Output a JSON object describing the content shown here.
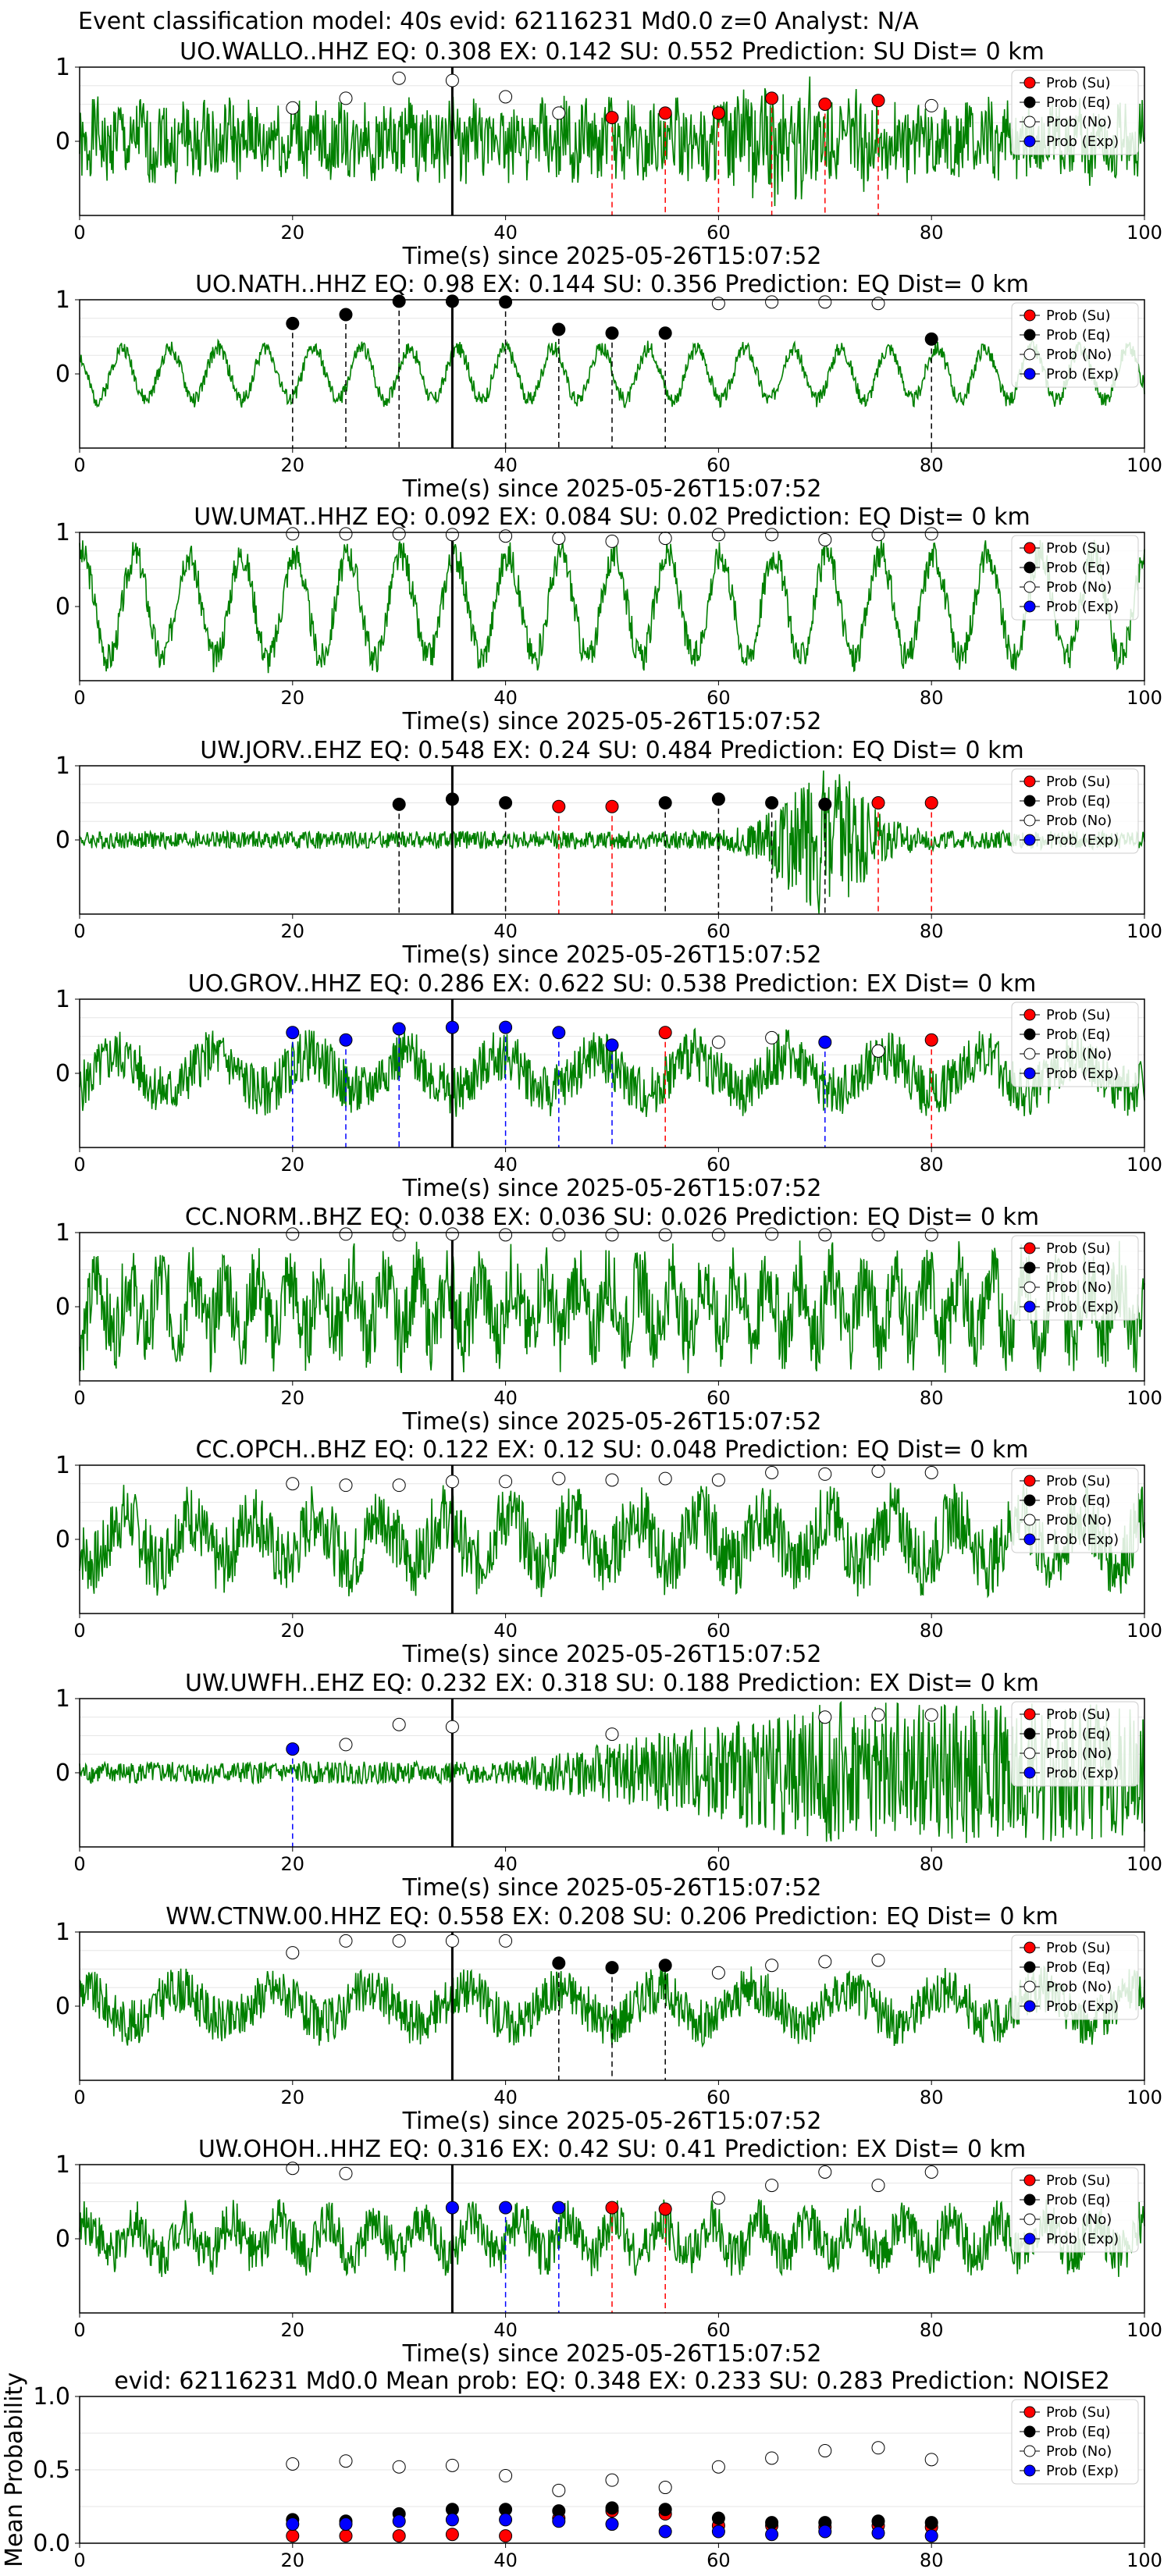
{
  "header": {
    "title": "Event classification model: 40s evid: 62116231 Md0.0 z=0 Analyst: N/A"
  },
  "legend": {
    "labels": [
      "Prob (Su)",
      "Prob (Eq)",
      "Prob (No)",
      "Prob (Exp)"
    ],
    "colors": [
      "#ff0000",
      "#000000",
      "#ffffff",
      "#0000ff"
    ]
  },
  "colors": {
    "trace": "#008000",
    "su": "#ff0000",
    "eq": "#000000",
    "no": "#ffffff",
    "ex": "#0000ff",
    "pick_line": "#000000",
    "grid": "#e6e6e6"
  },
  "chart_data": [
    {
      "type": "line",
      "title": "UO.WALLO..HHZ   EQ: 0.308   EX: 0.142   SU: 0.552   Prediction: SU    Dist= 0 km",
      "xlabel": "Time(s) since 2025-05-26T15:07:52",
      "xlim": [
        0,
        100
      ],
      "ylim": [
        -1,
        1
      ],
      "x_ticks": [
        "0",
        "20",
        "40",
        "60",
        "80",
        "100"
      ],
      "y_ticks": [
        "1",
        "0"
      ],
      "pick_time": 35,
      "trace": {
        "style": "emergent",
        "amplitude": 0.6,
        "period": 2,
        "seed": 1
      },
      "points": [
        {
          "x": 20,
          "y": 0.45,
          "cls": "no"
        },
        {
          "x": 25,
          "y": 0.58,
          "cls": "no"
        },
        {
          "x": 30,
          "y": 0.85,
          "cls": "no"
        },
        {
          "x": 35,
          "y": 0.82,
          "cls": "no"
        },
        {
          "x": 40,
          "y": 0.6,
          "cls": "no"
        },
        {
          "x": 45,
          "y": 0.38,
          "cls": "no"
        },
        {
          "x": 50,
          "y": 0.32,
          "cls": "su"
        },
        {
          "x": 55,
          "y": 0.38,
          "cls": "su"
        },
        {
          "x": 60,
          "y": 0.38,
          "cls": "su"
        },
        {
          "x": 65,
          "y": 0.58,
          "cls": "su"
        },
        {
          "x": 70,
          "y": 0.5,
          "cls": "su"
        },
        {
          "x": 75,
          "y": 0.55,
          "cls": "su"
        },
        {
          "x": 80,
          "y": 0.48,
          "cls": "no"
        }
      ]
    },
    {
      "type": "line",
      "title": "UO.NATH..HHZ   EQ: 0.98   EX: 0.144   SU: 0.356   Prediction: EQ    Dist= 0 km",
      "xlabel": "Time(s) since 2025-05-26T15:07:52",
      "xlim": [
        0,
        100
      ],
      "ylim": [
        -1,
        1
      ],
      "x_ticks": [
        "0",
        "20",
        "40",
        "60",
        "80",
        "100"
      ],
      "y_ticks": [
        "1",
        "0"
      ],
      "pick_time": 35,
      "trace": {
        "style": "oscillation",
        "amplitude": 0.35,
        "period": 4.5,
        "seed": 2
      },
      "points": [
        {
          "x": 20,
          "y": 0.68,
          "cls": "eq"
        },
        {
          "x": 25,
          "y": 0.8,
          "cls": "eq"
        },
        {
          "x": 30,
          "y": 0.98,
          "cls": "eq"
        },
        {
          "x": 35,
          "y": 0.98,
          "cls": "eq"
        },
        {
          "x": 40,
          "y": 0.97,
          "cls": "eq"
        },
        {
          "x": 45,
          "y": 0.6,
          "cls": "eq"
        },
        {
          "x": 50,
          "y": 0.55,
          "cls": "eq"
        },
        {
          "x": 55,
          "y": 0.55,
          "cls": "eq"
        },
        {
          "x": 60,
          "y": 0.95,
          "cls": "no"
        },
        {
          "x": 65,
          "y": 0.97,
          "cls": "no"
        },
        {
          "x": 70,
          "y": 0.97,
          "cls": "no"
        },
        {
          "x": 75,
          "y": 0.95,
          "cls": "no"
        },
        {
          "x": 80,
          "y": 0.47,
          "cls": "eq"
        }
      ]
    },
    {
      "type": "line",
      "title": "UW.UMAT..HHZ   EQ: 0.092   EX: 0.084   SU: 0.02   Prediction: EQ    Dist= 0 km",
      "xlabel": "Time(s) since 2025-05-26T15:07:52",
      "xlim": [
        0,
        100
      ],
      "ylim": [
        -1,
        1
      ],
      "x_ticks": [
        "0",
        "20",
        "40",
        "60",
        "80",
        "100"
      ],
      "y_ticks": [
        "1",
        "0"
      ],
      "pick_time": 35,
      "trace": {
        "style": "oscillation",
        "amplitude": 0.7,
        "period": 5,
        "seed": 3
      },
      "points": [
        {
          "x": 20,
          "y": 0.98,
          "cls": "no"
        },
        {
          "x": 25,
          "y": 0.98,
          "cls": "no"
        },
        {
          "x": 30,
          "y": 0.98,
          "cls": "no"
        },
        {
          "x": 35,
          "y": 0.97,
          "cls": "no"
        },
        {
          "x": 40,
          "y": 0.95,
          "cls": "no"
        },
        {
          "x": 45,
          "y": 0.92,
          "cls": "no"
        },
        {
          "x": 50,
          "y": 0.88,
          "cls": "no"
        },
        {
          "x": 55,
          "y": 0.92,
          "cls": "no"
        },
        {
          "x": 60,
          "y": 0.97,
          "cls": "no"
        },
        {
          "x": 65,
          "y": 0.97,
          "cls": "no"
        },
        {
          "x": 70,
          "y": 0.9,
          "cls": "no"
        },
        {
          "x": 75,
          "y": 0.97,
          "cls": "no"
        },
        {
          "x": 80,
          "y": 0.98,
          "cls": "no"
        }
      ]
    },
    {
      "type": "line",
      "title": "UW.JORV..EHZ   EQ: 0.548   EX: 0.24   SU: 0.484   Prediction: EQ    Dist= 0 km",
      "xlabel": "Time(s) since 2025-05-26T15:07:52",
      "xlim": [
        0,
        100
      ],
      "ylim": [
        -1,
        1
      ],
      "x_ticks": [
        "0",
        "20",
        "40",
        "60",
        "80",
        "100"
      ],
      "y_ticks": [
        "1",
        "0"
      ],
      "pick_time": 35,
      "trace": {
        "style": "quiet_burst",
        "amplitude": 0.12,
        "burst_center": 70,
        "burst_width": 5,
        "burst_amplitude": 0.9,
        "seed": 4
      },
      "points": [
        {
          "x": 30,
          "y": 0.48,
          "cls": "eq"
        },
        {
          "x": 35,
          "y": 0.55,
          "cls": "eq"
        },
        {
          "x": 40,
          "y": 0.5,
          "cls": "eq"
        },
        {
          "x": 45,
          "y": 0.45,
          "cls": "su"
        },
        {
          "x": 50,
          "y": 0.45,
          "cls": "su"
        },
        {
          "x": 55,
          "y": 0.5,
          "cls": "eq"
        },
        {
          "x": 60,
          "y": 0.55,
          "cls": "eq"
        },
        {
          "x": 65,
          "y": 0.5,
          "cls": "eq"
        },
        {
          "x": 70,
          "y": 0.48,
          "cls": "eq"
        },
        {
          "x": 75,
          "y": 0.5,
          "cls": "su"
        },
        {
          "x": 80,
          "y": 0.5,
          "cls": "su"
        }
      ]
    },
    {
      "type": "line",
      "title": "UO.GROV..HHZ   EQ: 0.286   EX: 0.622   SU: 0.538   Prediction: EX    Dist= 0 km",
      "xlabel": "Time(s) since 2025-05-26T15:07:52",
      "xlim": [
        0,
        100
      ],
      "ylim": [
        -1,
        1
      ],
      "x_ticks": [
        "0",
        "20",
        "40",
        "60",
        "80",
        "100"
      ],
      "y_ticks": [
        "1",
        "0"
      ],
      "pick_time": 35,
      "trace": {
        "style": "noise",
        "amplitude": 0.5,
        "period": 3,
        "seed": 5
      },
      "points": [
        {
          "x": 20,
          "y": 0.55,
          "cls": "ex"
        },
        {
          "x": 25,
          "y": 0.45,
          "cls": "ex"
        },
        {
          "x": 30,
          "y": 0.6,
          "cls": "ex"
        },
        {
          "x": 35,
          "y": 0.62,
          "cls": "ex"
        },
        {
          "x": 40,
          "y": 0.62,
          "cls": "ex"
        },
        {
          "x": 45,
          "y": 0.55,
          "cls": "ex"
        },
        {
          "x": 50,
          "y": 0.38,
          "cls": "ex"
        },
        {
          "x": 55,
          "y": 0.55,
          "cls": "su"
        },
        {
          "x": 60,
          "y": 0.42,
          "cls": "no"
        },
        {
          "x": 65,
          "y": 0.48,
          "cls": "no"
        },
        {
          "x": 70,
          "y": 0.42,
          "cls": "ex"
        },
        {
          "x": 75,
          "y": 0.3,
          "cls": "no"
        },
        {
          "x": 80,
          "y": 0.45,
          "cls": "su"
        }
      ]
    },
    {
      "type": "line",
      "title": "CC.NORM..BHZ   EQ: 0.038   EX: 0.036   SU: 0.026   Prediction: EQ    Dist= 0 km",
      "xlabel": "Time(s) since 2025-05-26T15:07:52",
      "xlim": [
        0,
        100
      ],
      "ylim": [
        -1,
        1
      ],
      "x_ticks": [
        "0",
        "20",
        "40",
        "60",
        "80",
        "100"
      ],
      "y_ticks": [
        "1",
        "0"
      ],
      "pick_time": 35,
      "trace": {
        "style": "noise",
        "amplitude": 0.75,
        "period": 1,
        "seed": 6
      },
      "points": [
        {
          "x": 20,
          "y": 0.98,
          "cls": "no"
        },
        {
          "x": 25,
          "y": 0.98,
          "cls": "no"
        },
        {
          "x": 30,
          "y": 0.97,
          "cls": "no"
        },
        {
          "x": 35,
          "y": 0.98,
          "cls": "no"
        },
        {
          "x": 40,
          "y": 0.97,
          "cls": "no"
        },
        {
          "x": 45,
          "y": 0.97,
          "cls": "no"
        },
        {
          "x": 50,
          "y": 0.97,
          "cls": "no"
        },
        {
          "x": 55,
          "y": 0.97,
          "cls": "no"
        },
        {
          "x": 60,
          "y": 0.97,
          "cls": "no"
        },
        {
          "x": 65,
          "y": 0.98,
          "cls": "no"
        },
        {
          "x": 70,
          "y": 0.97,
          "cls": "no"
        },
        {
          "x": 75,
          "y": 0.97,
          "cls": "no"
        },
        {
          "x": 80,
          "y": 0.97,
          "cls": "no"
        }
      ]
    },
    {
      "type": "line",
      "title": "CC.OPCH..BHZ   EQ: 0.122   EX: 0.12   SU: 0.048   Prediction: EQ    Dist= 0 km",
      "xlabel": "Time(s) since 2025-05-26T15:07:52",
      "xlim": [
        0,
        100
      ],
      "ylim": [
        -1,
        1
      ],
      "x_ticks": [
        "0",
        "20",
        "40",
        "60",
        "80",
        "100"
      ],
      "y_ticks": [
        "1",
        "0"
      ],
      "pick_time": 35,
      "trace": {
        "style": "noise",
        "amplitude": 0.65,
        "period": 2,
        "seed": 7
      },
      "points": [
        {
          "x": 20,
          "y": 0.75,
          "cls": "no"
        },
        {
          "x": 25,
          "y": 0.73,
          "cls": "no"
        },
        {
          "x": 30,
          "y": 0.73,
          "cls": "no"
        },
        {
          "x": 35,
          "y": 0.78,
          "cls": "no"
        },
        {
          "x": 40,
          "y": 0.78,
          "cls": "no"
        },
        {
          "x": 45,
          "y": 0.82,
          "cls": "no"
        },
        {
          "x": 50,
          "y": 0.8,
          "cls": "no"
        },
        {
          "x": 55,
          "y": 0.82,
          "cls": "no"
        },
        {
          "x": 60,
          "y": 0.8,
          "cls": "no"
        },
        {
          "x": 65,
          "y": 0.9,
          "cls": "no"
        },
        {
          "x": 70,
          "y": 0.88,
          "cls": "no"
        },
        {
          "x": 75,
          "y": 0.92,
          "cls": "no"
        },
        {
          "x": 80,
          "y": 0.9,
          "cls": "no"
        }
      ]
    },
    {
      "type": "line",
      "title": "UW.UWFH..EHZ   EQ: 0.232   EX: 0.318   SU: 0.188   Prediction: EX    Dist= 0 km",
      "xlabel": "Time(s) since 2025-05-26T15:07:52",
      "xlim": [
        0,
        100
      ],
      "ylim": [
        -1,
        1
      ],
      "x_ticks": [
        "0",
        "20",
        "40",
        "60",
        "80",
        "100"
      ],
      "y_ticks": [
        "1",
        "0"
      ],
      "pick_time": 35,
      "trace": {
        "style": "growing",
        "amplitude": 0.15,
        "burst_center": 75,
        "burst_width": 12,
        "burst_amplitude": 0.8,
        "seed": 8
      },
      "points": [
        {
          "x": 20,
          "y": 0.32,
          "cls": "ex"
        },
        {
          "x": 25,
          "y": 0.38,
          "cls": "no"
        },
        {
          "x": 30,
          "y": 0.65,
          "cls": "no"
        },
        {
          "x": 35,
          "y": 0.62,
          "cls": "no"
        },
        {
          "x": 50,
          "y": 0.52,
          "cls": "no"
        },
        {
          "x": 70,
          "y": 0.75,
          "cls": "no"
        },
        {
          "x": 75,
          "y": 0.78,
          "cls": "no"
        },
        {
          "x": 80,
          "y": 0.78,
          "cls": "no"
        }
      ]
    },
    {
      "type": "line",
      "title": "WW.CTNW.00.HHZ   EQ: 0.558   EX: 0.208   SU: 0.206   Prediction: EQ    Dist= 0 km",
      "xlabel": "Time(s) since 2025-05-26T15:07:52",
      "xlim": [
        0,
        100
      ],
      "ylim": [
        -1,
        1
      ],
      "x_ticks": [
        "0",
        "20",
        "40",
        "60",
        "80",
        "100"
      ],
      "y_ticks": [
        "1",
        "0"
      ],
      "pick_time": 35,
      "trace": {
        "style": "noise",
        "amplitude": 0.45,
        "period": 3,
        "seed": 9
      },
      "points": [
        {
          "x": 20,
          "y": 0.72,
          "cls": "no"
        },
        {
          "x": 25,
          "y": 0.88,
          "cls": "no"
        },
        {
          "x": 30,
          "y": 0.88,
          "cls": "no"
        },
        {
          "x": 35,
          "y": 0.88,
          "cls": "no"
        },
        {
          "x": 40,
          "y": 0.88,
          "cls": "no"
        },
        {
          "x": 45,
          "y": 0.58,
          "cls": "eq"
        },
        {
          "x": 50,
          "y": 0.52,
          "cls": "eq"
        },
        {
          "x": 55,
          "y": 0.55,
          "cls": "eq"
        },
        {
          "x": 60,
          "y": 0.45,
          "cls": "no"
        },
        {
          "x": 65,
          "y": 0.55,
          "cls": "no"
        },
        {
          "x": 70,
          "y": 0.6,
          "cls": "no"
        },
        {
          "x": 75,
          "y": 0.62,
          "cls": "no"
        }
      ]
    },
    {
      "type": "line",
      "title": "UW.OHOH..HHZ   EQ: 0.316   EX: 0.42   SU: 0.41   Prediction: EX    Dist= 0 km",
      "xlabel": "Time(s) since 2025-05-26T15:07:52",
      "xlim": [
        0,
        100
      ],
      "ylim": [
        -1,
        1
      ],
      "x_ticks": [
        "0",
        "20",
        "40",
        "60",
        "80",
        "100"
      ],
      "y_ticks": [
        "1",
        "0"
      ],
      "pick_time": 35,
      "trace": {
        "style": "noise",
        "amplitude": 0.45,
        "period": 1.5,
        "seed": 10
      },
      "points": [
        {
          "x": 20,
          "y": 0.95,
          "cls": "no"
        },
        {
          "x": 25,
          "y": 0.88,
          "cls": "no"
        },
        {
          "x": 35,
          "y": 0.42,
          "cls": "ex"
        },
        {
          "x": 40,
          "y": 0.42,
          "cls": "ex"
        },
        {
          "x": 45,
          "y": 0.42,
          "cls": "ex"
        },
        {
          "x": 50,
          "y": 0.42,
          "cls": "su"
        },
        {
          "x": 55,
          "y": 0.4,
          "cls": "su"
        },
        {
          "x": 60,
          "y": 0.55,
          "cls": "no"
        },
        {
          "x": 65,
          "y": 0.72,
          "cls": "no"
        },
        {
          "x": 70,
          "y": 0.9,
          "cls": "no"
        },
        {
          "x": 75,
          "y": 0.72,
          "cls": "no"
        },
        {
          "x": 80,
          "y": 0.9,
          "cls": "no"
        }
      ]
    },
    {
      "type": "scatter",
      "title": "evid: 62116231   Md0.0    Mean prob:    EQ: 0.348   EX: 0.233   SU: 0.283    Prediction: NOISE2",
      "xlabel": "",
      "ylabel": "Mean Probability",
      "xlim": [
        0,
        100
      ],
      "ylim": [
        0,
        1
      ],
      "x_ticks": [
        "0",
        "20",
        "40",
        "60",
        "80",
        "100"
      ],
      "y_ticks": [
        "1.0",
        "0.5",
        "0.0"
      ],
      "series": [
        {
          "name": "Prob (Su)",
          "cls": "su",
          "x": [
            20,
            25,
            30,
            35,
            40,
            45,
            50,
            55,
            60,
            65,
            70,
            75,
            80
          ],
          "y": [
            0.05,
            0.05,
            0.05,
            0.06,
            0.05,
            0.17,
            0.22,
            0.2,
            0.12,
            0.12,
            0.11,
            0.12,
            0.11
          ]
        },
        {
          "name": "Prob (Eq)",
          "cls": "eq",
          "x": [
            20,
            25,
            30,
            35,
            40,
            45,
            50,
            55,
            60,
            65,
            70,
            75,
            80
          ],
          "y": [
            0.16,
            0.15,
            0.2,
            0.23,
            0.23,
            0.22,
            0.24,
            0.23,
            0.17,
            0.14,
            0.14,
            0.15,
            0.14
          ]
        },
        {
          "name": "Prob (No)",
          "cls": "no",
          "x": [
            20,
            25,
            30,
            35,
            40,
            45,
            50,
            55,
            60,
            65,
            70,
            75,
            80
          ],
          "y": [
            0.54,
            0.56,
            0.52,
            0.53,
            0.46,
            0.36,
            0.43,
            0.38,
            0.52,
            0.58,
            0.63,
            0.65,
            0.57
          ]
        },
        {
          "name": "Prob (Exp)",
          "cls": "ex",
          "x": [
            20,
            25,
            30,
            35,
            40,
            45,
            50,
            55,
            60,
            65,
            70,
            75,
            80
          ],
          "y": [
            0.13,
            0.13,
            0.15,
            0.16,
            0.16,
            0.15,
            0.13,
            0.08,
            0.08,
            0.06,
            0.08,
            0.07,
            0.05
          ]
        }
      ]
    }
  ]
}
